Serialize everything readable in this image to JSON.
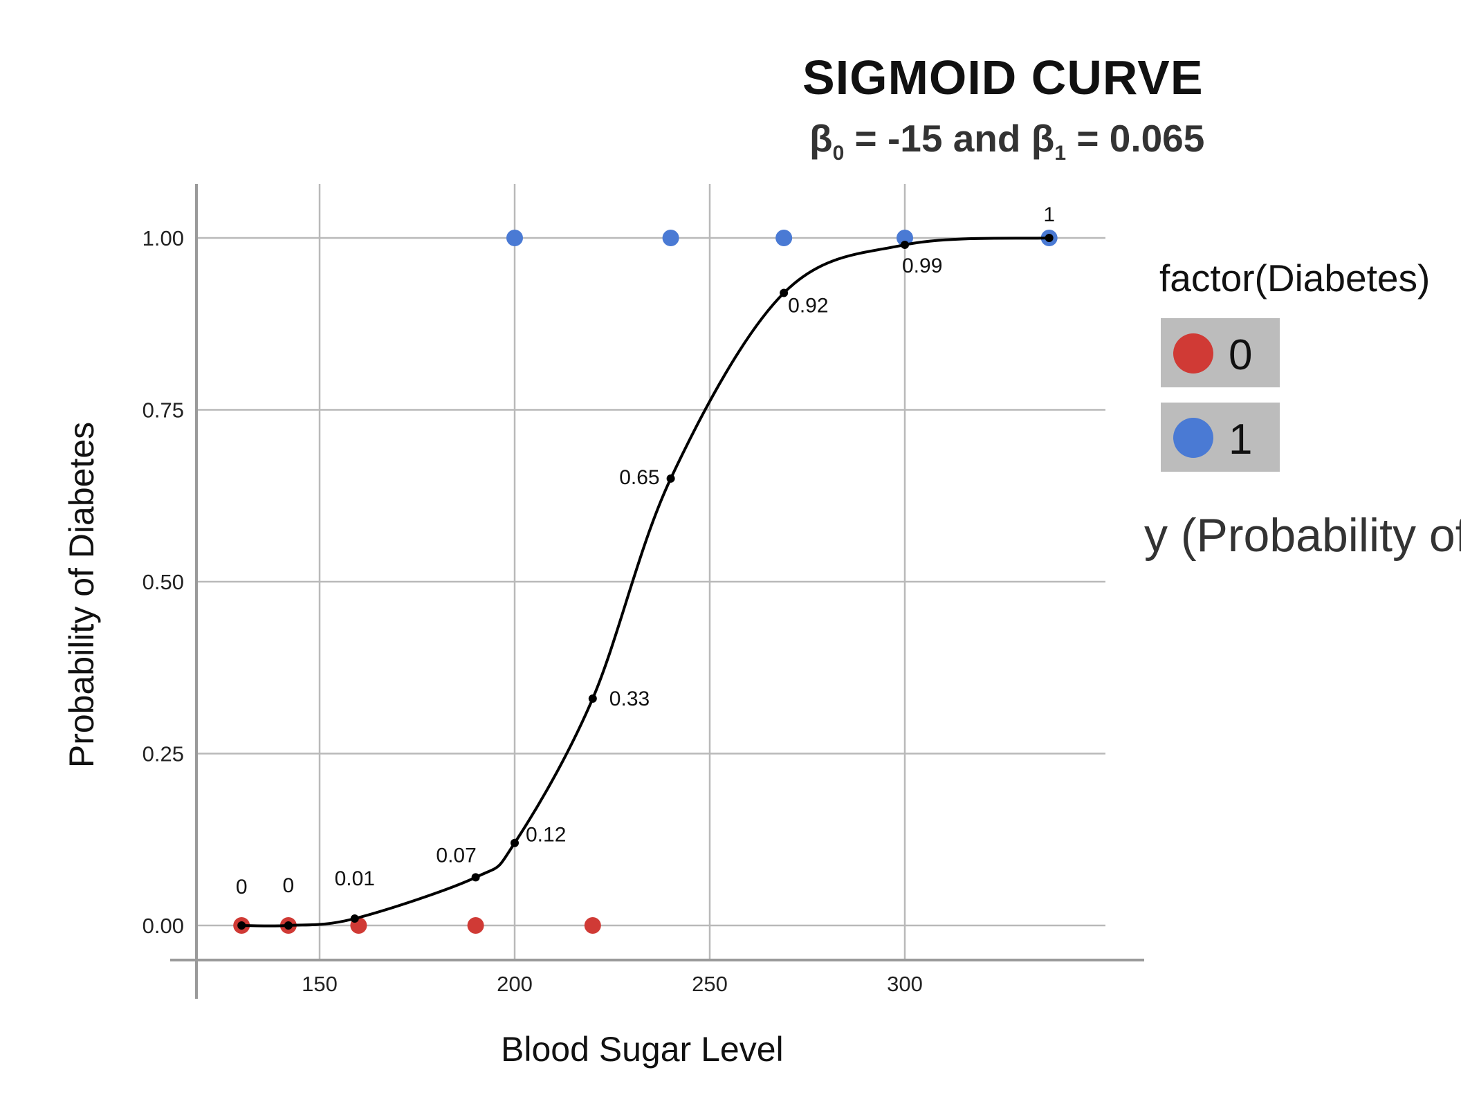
{
  "chart_data": {
    "type": "scatter",
    "title": "SIGMOID CURVE",
    "subtitle": {
      "beta0_label": "β",
      "beta0_sub": "0",
      "beta0_text": " = -15 and ",
      "beta1_label": "β",
      "beta1_sub": "1",
      "beta1_text": " = 0.065"
    },
    "xlabel": "Blood Sugar Level",
    "ylabel": "Probability of Diabetes",
    "xlim": [
      122,
      338
    ],
    "ylim": [
      -0.05,
      1.1
    ],
    "x_ticks": [
      150,
      200,
      250,
      300
    ],
    "x_tick_labels": [
      "150",
      "200",
      "250",
      "300"
    ],
    "y_ticks": [
      0,
      0.25,
      0.5,
      0.75,
      1.0
    ],
    "y_tick_labels": [
      "0.00",
      "0.25",
      "0.50",
      "0.75",
      "1.00"
    ],
    "grid": true,
    "legend": {
      "title": "factor(Diabetes)",
      "position": "right",
      "entries": [
        {
          "label": "0",
          "color": "#d03a35"
        },
        {
          "label": "1",
          "color": "#4a7ad4"
        }
      ]
    },
    "series": [
      {
        "class": "0",
        "color": "#d03a35",
        "points": [
          [
            130,
            0
          ],
          [
            142,
            0
          ],
          [
            160,
            0
          ],
          [
            190,
            0
          ],
          [
            220,
            0
          ]
        ]
      },
      {
        "class": "1",
        "color": "#4a7ad4",
        "points": [
          [
            200,
            1
          ],
          [
            240,
            1
          ],
          [
            269,
            1
          ],
          [
            300,
            1
          ],
          [
            337,
            1
          ]
        ]
      }
    ],
    "curve": {
      "color": "#000000",
      "points": [
        [
          130,
          0.0
        ],
        [
          142,
          0.0
        ],
        [
          159,
          0.01
        ],
        [
          190,
          0.07
        ],
        [
          200,
          0.12
        ],
        [
          220,
          0.33
        ],
        [
          240,
          0.65
        ],
        [
          269,
          0.92
        ],
        [
          300,
          0.99
        ],
        [
          337,
          1.0
        ]
      ],
      "labels": [
        {
          "x": 130,
          "y": 0.0,
          "text": "0"
        },
        {
          "x": 142,
          "y": 0.0,
          "text": "0"
        },
        {
          "x": 159,
          "y": 0.01,
          "text": "0.01"
        },
        {
          "x": 190,
          "y": 0.07,
          "text": "0.07"
        },
        {
          "x": 200,
          "y": 0.12,
          "text": "0.12"
        },
        {
          "x": 220,
          "y": 0.33,
          "text": "0.33"
        },
        {
          "x": 240,
          "y": 0.65,
          "text": "0.65"
        },
        {
          "x": 269,
          "y": 0.92,
          "text": "0.92"
        },
        {
          "x": 300,
          "y": 0.99,
          "text": "0.99"
        },
        {
          "x": 337,
          "y": 1.0,
          "text": "1"
        }
      ]
    }
  },
  "side_text": "y (Probability of"
}
